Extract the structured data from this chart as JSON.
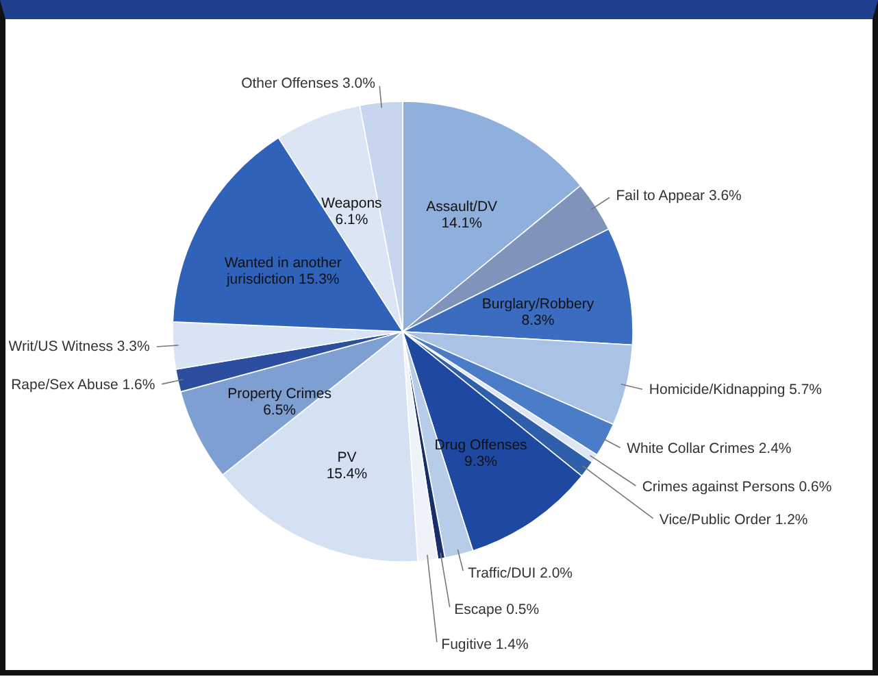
{
  "chart_data": {
    "type": "pie",
    "categories": [
      "Assault/DV",
      "Fail to Appear",
      "Burglary/Robbery",
      "Homicide/Kidnapping",
      "White Collar Crimes",
      "Crimes against Persons",
      "Vice/Public Order",
      "Drug Offenses",
      "Traffic/DUI",
      "Escape",
      "Fugitive",
      "PV",
      "Property Crimes",
      "Rape/Sex Abuse",
      "Writ/US Witness",
      "Wanted in another jurisdiction",
      "Weapons",
      "Other Offenses"
    ],
    "values": [
      14.1,
      3.6,
      8.3,
      5.7,
      2.4,
      0.6,
      1.2,
      9.3,
      2.0,
      0.5,
      1.4,
      15.4,
      6.5,
      1.6,
      3.3,
      15.3,
      6.1,
      3.0
    ],
    "value_labels": [
      "14.1%",
      "3.6%",
      "8.3%",
      "5.7%",
      "2.4%",
      "0.6%",
      "1.2%",
      "9.3%",
      "2.0%",
      "0.5%",
      "1.4%",
      "15.4%",
      "6.5%",
      "1.6%",
      "3.3%",
      "15.3%",
      "6.1%",
      "3.0%"
    ],
    "colors": [
      "#8fb0dc",
      "#7f93bb",
      "#3b6cc0",
      "#a9c2e6",
      "#4a7cc8",
      "#dce6f4",
      "#2f5faa",
      "#1f48a0",
      "#b7cce8",
      "#1a2f6a",
      "#eef3fa",
      "#d4e1f3",
      "#7d9fd2",
      "#2b4f9e",
      "#d8e4f4",
      "#2f62b8",
      "#dbe5f3",
      "#c7d6ee"
    ]
  }
}
